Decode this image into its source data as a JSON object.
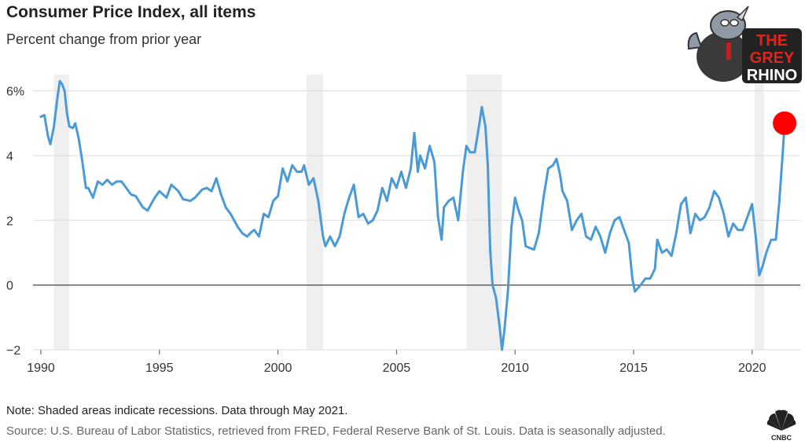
{
  "header": {
    "title": "Consumer Price Index, all items",
    "subtitle": "Percent change from prior year"
  },
  "footer": {
    "note": "Note: Shaded areas indicate recessions. Data through May 2021.",
    "source": "Source: U.S. Bureau of Labor Statistics, retrieved from FRED, Federal Reserve Bank of St. Louis. Data is seasonally adjusted.",
    "cnbc_label": "CNBC"
  },
  "logo": {
    "line1": "THE",
    "line2": "GREY",
    "line3": "RHINO"
  },
  "colors": {
    "line": "#4a9ad8",
    "highlight": "#ff0000",
    "recession": "#efefef",
    "grid": "#dddddd",
    "zero": "#555555"
  },
  "chart_data": {
    "type": "line",
    "title": "Consumer Price Index, all items",
    "subtitle": "Percent change from prior year",
    "xlabel": "",
    "ylabel": "",
    "xlim": [
      1990,
      2021.6
    ],
    "ylim": [
      -2,
      6.5
    ],
    "x_ticks": [
      1990,
      1995,
      2000,
      2005,
      2010,
      2015,
      2020
    ],
    "y_ticks": [
      {
        "value": 6,
        "label": "6%"
      },
      {
        "value": 4,
        "label": "4"
      },
      {
        "value": 2,
        "label": "2"
      },
      {
        "value": 0,
        "label": "0"
      },
      {
        "value": -2,
        "label": "−2"
      }
    ],
    "recessions": [
      [
        1990.55,
        1991.2
      ],
      [
        2001.2,
        2001.9
      ],
      [
        2007.95,
        2009.45
      ],
      [
        2020.1,
        2020.5
      ]
    ],
    "highlight_point": {
      "x": 2021.37,
      "y": 5.0
    },
    "grid": true,
    "series": [
      {
        "points": [
          [
            1990.0,
            5.2
          ],
          [
            1990.15,
            5.25
          ],
          [
            1990.3,
            4.6
          ],
          [
            1990.4,
            4.35
          ],
          [
            1990.55,
            4.9
          ],
          [
            1990.7,
            5.8
          ],
          [
            1990.8,
            6.3
          ],
          [
            1990.9,
            6.2
          ],
          [
            1991.0,
            6.0
          ],
          [
            1991.1,
            5.3
          ],
          [
            1991.2,
            4.9
          ],
          [
            1991.35,
            4.85
          ],
          [
            1991.45,
            5.0
          ],
          [
            1991.6,
            4.5
          ],
          [
            1991.75,
            3.8
          ],
          [
            1991.9,
            3.0
          ],
          [
            1992.0,
            3.0
          ],
          [
            1992.2,
            2.7
          ],
          [
            1992.4,
            3.2
          ],
          [
            1992.6,
            3.1
          ],
          [
            1992.8,
            3.25
          ],
          [
            1993.0,
            3.1
          ],
          [
            1993.2,
            3.2
          ],
          [
            1993.4,
            3.2
          ],
          [
            1993.6,
            3.0
          ],
          [
            1993.8,
            2.8
          ],
          [
            1994.0,
            2.75
          ],
          [
            1994.3,
            2.4
          ],
          [
            1994.5,
            2.3
          ],
          [
            1994.8,
            2.7
          ],
          [
            1995.0,
            2.9
          ],
          [
            1995.3,
            2.7
          ],
          [
            1995.5,
            3.1
          ],
          [
            1995.8,
            2.9
          ],
          [
            1996.0,
            2.65
          ],
          [
            1996.3,
            2.6
          ],
          [
            1996.5,
            2.7
          ],
          [
            1996.8,
            2.95
          ],
          [
            1997.0,
            3.0
          ],
          [
            1997.2,
            2.9
          ],
          [
            1997.4,
            3.3
          ],
          [
            1997.6,
            2.8
          ],
          [
            1997.8,
            2.4
          ],
          [
            1998.0,
            2.2
          ],
          [
            1998.3,
            1.8
          ],
          [
            1998.5,
            1.6
          ],
          [
            1998.7,
            1.5
          ],
          [
            1998.9,
            1.65
          ],
          [
            1999.0,
            1.7
          ],
          [
            1999.2,
            1.5
          ],
          [
            1999.4,
            2.2
          ],
          [
            1999.6,
            2.1
          ],
          [
            1999.8,
            2.6
          ],
          [
            2000.0,
            2.75
          ],
          [
            2000.2,
            3.6
          ],
          [
            2000.4,
            3.2
          ],
          [
            2000.6,
            3.7
          ],
          [
            2000.8,
            3.5
          ],
          [
            2001.0,
            3.5
          ],
          [
            2001.1,
            3.7
          ],
          [
            2001.3,
            3.1
          ],
          [
            2001.5,
            3.3
          ],
          [
            2001.7,
            2.6
          ],
          [
            2001.9,
            1.5
          ],
          [
            2002.0,
            1.2
          ],
          [
            2002.2,
            1.5
          ],
          [
            2002.4,
            1.2
          ],
          [
            2002.6,
            1.5
          ],
          [
            2002.8,
            2.2
          ],
          [
            2003.0,
            2.7
          ],
          [
            2003.2,
            3.1
          ],
          [
            2003.4,
            2.1
          ],
          [
            2003.6,
            2.2
          ],
          [
            2003.8,
            1.9
          ],
          [
            2004.0,
            2.0
          ],
          [
            2004.2,
            2.3
          ],
          [
            2004.4,
            3.0
          ],
          [
            2004.6,
            2.6
          ],
          [
            2004.8,
            3.3
          ],
          [
            2005.0,
            3.0
          ],
          [
            2005.2,
            3.5
          ],
          [
            2005.4,
            3.0
          ],
          [
            2005.6,
            3.6
          ],
          [
            2005.75,
            4.7
          ],
          [
            2005.9,
            3.5
          ],
          [
            2006.0,
            4.0
          ],
          [
            2006.2,
            3.6
          ],
          [
            2006.4,
            4.3
          ],
          [
            2006.6,
            3.8
          ],
          [
            2006.75,
            2.1
          ],
          [
            2006.9,
            1.4
          ],
          [
            2007.0,
            2.4
          ],
          [
            2007.2,
            2.6
          ],
          [
            2007.4,
            2.7
          ],
          [
            2007.6,
            2.0
          ],
          [
            2007.8,
            3.5
          ],
          [
            2007.95,
            4.3
          ],
          [
            2008.1,
            4.1
          ],
          [
            2008.3,
            4.1
          ],
          [
            2008.5,
            5.0
          ],
          [
            2008.6,
            5.5
          ],
          [
            2008.75,
            4.9
          ],
          [
            2008.85,
            3.7
          ],
          [
            2008.95,
            1.1
          ],
          [
            2009.05,
            0.0
          ],
          [
            2009.2,
            -0.4
          ],
          [
            2009.35,
            -1.3
          ],
          [
            2009.45,
            -2.0
          ],
          [
            2009.55,
            -1.4
          ],
          [
            2009.7,
            -0.2
          ],
          [
            2009.85,
            1.8
          ],
          [
            2010.0,
            2.7
          ],
          [
            2010.15,
            2.3
          ],
          [
            2010.3,
            2.0
          ],
          [
            2010.45,
            1.2
          ],
          [
            2010.6,
            1.15
          ],
          [
            2010.8,
            1.1
          ],
          [
            2011.0,
            1.6
          ],
          [
            2011.2,
            2.7
          ],
          [
            2011.4,
            3.6
          ],
          [
            2011.6,
            3.7
          ],
          [
            2011.75,
            3.9
          ],
          [
            2011.9,
            3.4
          ],
          [
            2012.0,
            2.9
          ],
          [
            2012.2,
            2.6
          ],
          [
            2012.4,
            1.7
          ],
          [
            2012.6,
            2.0
          ],
          [
            2012.8,
            2.2
          ],
          [
            2013.0,
            1.5
          ],
          [
            2013.2,
            1.4
          ],
          [
            2013.4,
            1.8
          ],
          [
            2013.6,
            1.5
          ],
          [
            2013.8,
            1.0
          ],
          [
            2014.0,
            1.6
          ],
          [
            2014.2,
            2.0
          ],
          [
            2014.4,
            2.1
          ],
          [
            2014.6,
            1.7
          ],
          [
            2014.8,
            1.3
          ],
          [
            2014.95,
            0.2
          ],
          [
            2015.05,
            -0.2
          ],
          [
            2015.3,
            0.0
          ],
          [
            2015.5,
            0.2
          ],
          [
            2015.7,
            0.2
          ],
          [
            2015.9,
            0.5
          ],
          [
            2016.0,
            1.4
          ],
          [
            2016.2,
            1.0
          ],
          [
            2016.4,
            1.1
          ],
          [
            2016.6,
            0.9
          ],
          [
            2016.8,
            1.6
          ],
          [
            2017.0,
            2.5
          ],
          [
            2017.2,
            2.7
          ],
          [
            2017.4,
            1.6
          ],
          [
            2017.6,
            2.2
          ],
          [
            2017.8,
            2.0
          ],
          [
            2018.0,
            2.1
          ],
          [
            2018.2,
            2.4
          ],
          [
            2018.4,
            2.9
          ],
          [
            2018.6,
            2.7
          ],
          [
            2018.8,
            2.2
          ],
          [
            2019.0,
            1.5
          ],
          [
            2019.2,
            1.9
          ],
          [
            2019.4,
            1.7
          ],
          [
            2019.6,
            1.7
          ],
          [
            2019.8,
            2.1
          ],
          [
            2020.0,
            2.5
          ],
          [
            2020.15,
            1.5
          ],
          [
            2020.3,
            0.3
          ],
          [
            2020.45,
            0.6
          ],
          [
            2020.6,
            1.0
          ],
          [
            2020.8,
            1.4
          ],
          [
            2021.0,
            1.4
          ],
          [
            2021.15,
            2.6
          ],
          [
            2021.3,
            4.2
          ],
          [
            2021.37,
            5.0
          ]
        ]
      }
    ]
  }
}
